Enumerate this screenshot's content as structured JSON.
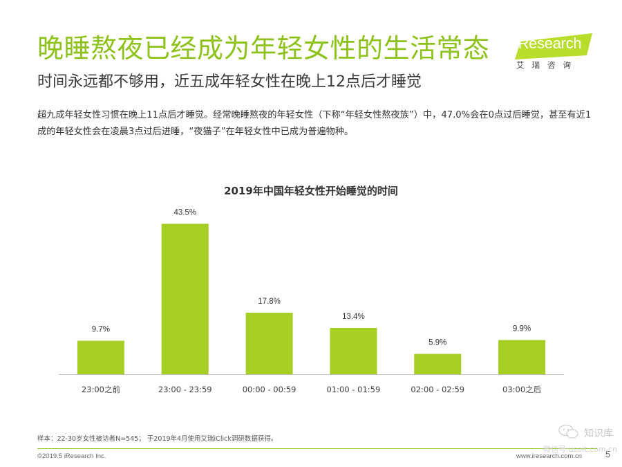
{
  "header": {
    "title": "晚睡熬夜已经成为年轻女性的生活常态",
    "subtitle": "时间永远都不够用，近五成年轻女性在晚上12点后才睡觉",
    "description": "超九成年轻女性习惯在晚上11点后才睡觉。经常晚睡熬夜的年轻女性（下称“年轻女性熬夜族”）中，47.0%会在0点过后睡觉，甚至有近1成的年轻女性会在凌晨3点过后进睡，“夜猫子”在年轻女性中已成为普遍物种。"
  },
  "logo": {
    "brand": "iResearch",
    "sub": "艾瑞咨询",
    "accent_color": "#b8dd2a"
  },
  "chart_data": {
    "type": "bar",
    "title": "2019年中国年轻女性开始睡觉的时间",
    "categories": [
      "23:00之前",
      "23:00 - 23:59",
      "00:00 - 00:59",
      "01:00 - 01:59",
      "02:00 - 02:59",
      "03:00之后"
    ],
    "values": [
      9.7,
      43.5,
      17.8,
      13.4,
      5.9,
      9.9
    ],
    "value_labels": [
      "9.7%",
      "43.5%",
      "17.8%",
      "13.4%",
      "5.9%",
      "9.9%"
    ],
    "xlabel": "",
    "ylabel": "",
    "ylim": [
      0,
      50
    ],
    "grid": false,
    "bar_color": "#a6cf26"
  },
  "footer": {
    "footnote": "样本：22-30岁女性被访者N=545；  于2019年4月使用艾瑞iClick调研数据获得。",
    "copyright": "©2019.5 iResearch Inc.",
    "website": "www.iresearch.com.cn",
    "page_number": "5"
  },
  "watermark": {
    "brand": "知识库",
    "sub": "微信号:useit.com.cn"
  }
}
